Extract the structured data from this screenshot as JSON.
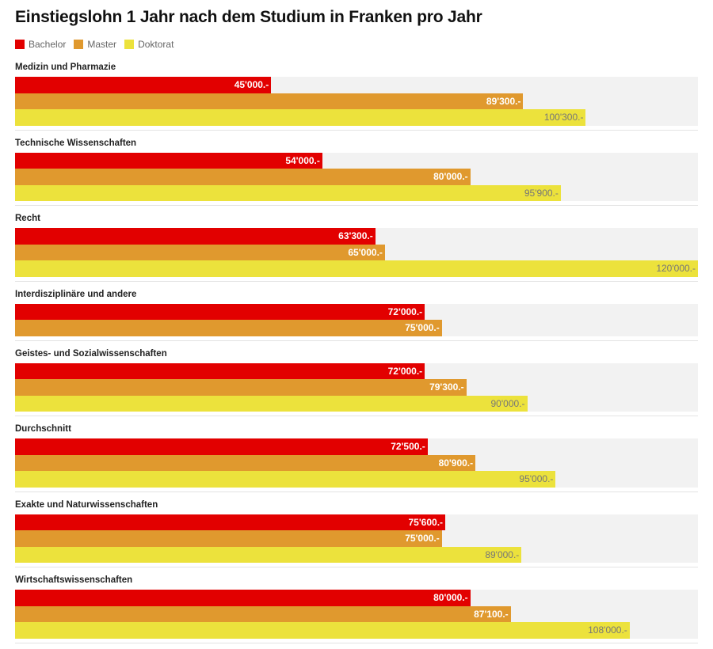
{
  "chart_data": {
    "type": "bar",
    "orientation": "horizontal",
    "title": "Einstiegslohn 1 Jahr nach dem Studium in Franken pro Jahr",
    "xlim": [
      0,
      120000
    ],
    "grid": false,
    "legend_position": "top-left",
    "series": [
      {
        "name": "Bachelor",
        "color": "#e20000"
      },
      {
        "name": "Master",
        "color": "#e0992e"
      },
      {
        "name": "Doktorat",
        "color": "#ece23c"
      }
    ],
    "categories": [
      {
        "label": "Medizin und Pharmazie",
        "values": [
          45000,
          89300,
          100300
        ],
        "labels": [
          "45'000.-",
          "89'300.-",
          "100'300.-"
        ]
      },
      {
        "label": "Technische Wissenschaften",
        "values": [
          54000,
          80000,
          95900
        ],
        "labels": [
          "54'000.-",
          "80'000.-",
          "95'900.-"
        ]
      },
      {
        "label": "Recht",
        "values": [
          63300,
          65000,
          120000
        ],
        "labels": [
          "63'300.-",
          "65'000.-",
          "120'000.-"
        ]
      },
      {
        "label": "Interdisziplinäre und andere",
        "values": [
          72000,
          75000,
          null
        ],
        "labels": [
          "72'000.-",
          "75'000.-",
          null
        ]
      },
      {
        "label": "Geistes- und Sozialwissenschaften",
        "values": [
          72000,
          79300,
          90000
        ],
        "labels": [
          "72'000.-",
          "79'300.-",
          "90'000.-"
        ]
      },
      {
        "label": "Durchschnitt",
        "values": [
          72500,
          80900,
          95000
        ],
        "labels": [
          "72'500.-",
          "80'900.-",
          "95'000.-"
        ]
      },
      {
        "label": "Exakte und Naturwissenschaften",
        "values": [
          75600,
          75000,
          89000
        ],
        "labels": [
          "75'600.-",
          "75'000.-",
          "89'000.-"
        ]
      },
      {
        "label": "Wirtschaftswissenschaften",
        "values": [
          80000,
          87100,
          108000
        ],
        "labels": [
          "80'000.-",
          "87'100.-",
          "108'000.-"
        ]
      }
    ]
  }
}
